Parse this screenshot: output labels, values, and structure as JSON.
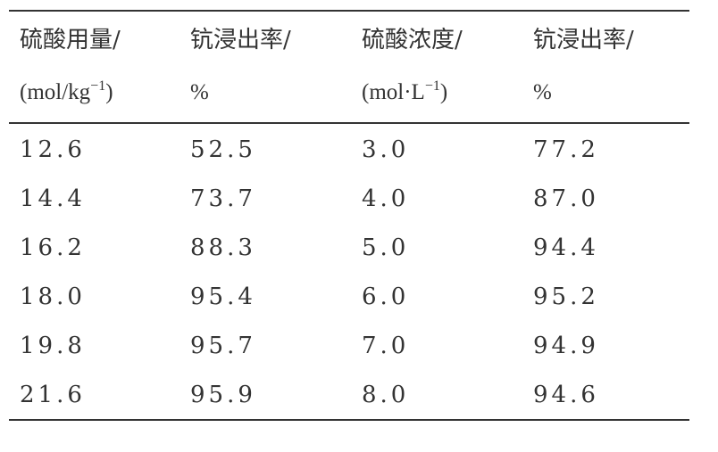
{
  "table": {
    "header": [
      {
        "title": "硫酸用量/",
        "unit": [
          "(mol/kg",
          "−1",
          ")"
        ]
      },
      {
        "title": "钪浸出率/",
        "unit": [
          "%"
        ]
      },
      {
        "title": "硫酸浓度/",
        "unit": [
          "(mol·L",
          "−1",
          ")"
        ]
      },
      {
        "title": "钪浸出率/",
        "unit": [
          "%"
        ]
      }
    ],
    "rows": [
      [
        "12.6",
        "52.5",
        "3.0",
        "77.2"
      ],
      [
        "14.4",
        "73.7",
        "4.0",
        "87.0"
      ],
      [
        "16.2",
        "88.3",
        "5.0",
        "94.4"
      ],
      [
        "18.0",
        "95.4",
        "6.0",
        "95.2"
      ],
      [
        "19.8",
        "95.7",
        "7.0",
        "94.9"
      ],
      [
        "21.6",
        "95.9",
        "8.0",
        "94.6"
      ]
    ]
  }
}
